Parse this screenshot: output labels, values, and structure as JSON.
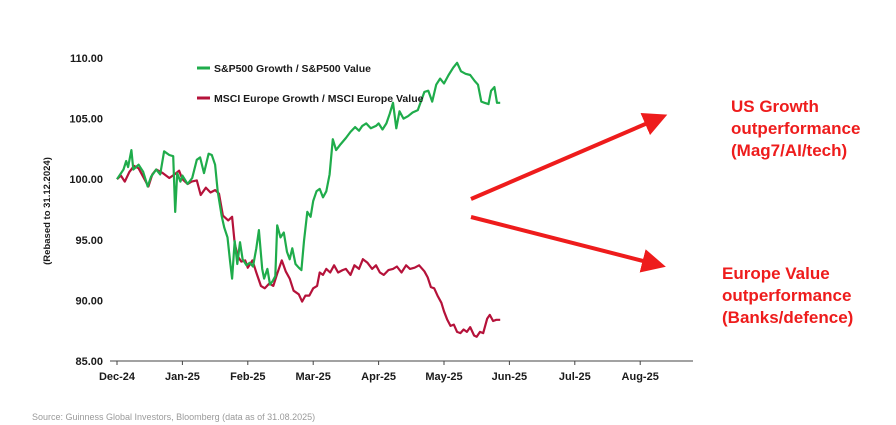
{
  "chart_data": {
    "type": "line",
    "title": "",
    "ylabel": "(Rebased to 31.12.2024)",
    "xlabel": "",
    "ylim": [
      85,
      110
    ],
    "y_ticks": [
      "85.00",
      "90.00",
      "95.00",
      "100.00",
      "105.00",
      "110.00"
    ],
    "x_ticks": [
      "Dec-24",
      "Jan-25",
      "Feb-25",
      "Mar-25",
      "Apr-25",
      "May-25",
      "Jun-25",
      "Jul-25",
      "Aug-25"
    ],
    "grid": false,
    "legend_position": "top-left",
    "series": [
      {
        "name": "S&P500 Growth / S&P500 Value",
        "color": "#1fac4b",
        "points": [
          [
            0.0,
            100.0
          ],
          [
            0.1,
            100.8
          ],
          [
            0.14,
            101.5
          ],
          [
            0.17,
            101.0
          ],
          [
            0.22,
            102.4
          ],
          [
            0.25,
            100.8
          ],
          [
            0.33,
            101.2
          ],
          [
            0.4,
            100.6
          ],
          [
            0.47,
            99.4
          ],
          [
            0.52,
            100.2
          ],
          [
            0.6,
            100.8
          ],
          [
            0.66,
            100.4
          ],
          [
            0.72,
            102.3
          ],
          [
            0.8,
            102.0
          ],
          [
            0.86,
            101.9
          ],
          [
            0.89,
            97.3
          ],
          [
            0.92,
            100.5
          ],
          [
            0.97,
            99.8
          ],
          [
            1.0,
            100.3
          ],
          [
            1.08,
            99.6
          ],
          [
            1.15,
            100.1
          ],
          [
            1.22,
            101.6
          ],
          [
            1.27,
            101.8
          ],
          [
            1.33,
            100.5
          ],
          [
            1.4,
            102.1
          ],
          [
            1.45,
            102.0
          ],
          [
            1.5,
            101.2
          ],
          [
            1.54,
            99.0
          ],
          [
            1.6,
            97.0
          ],
          [
            1.64,
            96.0
          ],
          [
            1.69,
            95.2
          ],
          [
            1.73,
            93.2
          ],
          [
            1.76,
            91.8
          ],
          [
            1.8,
            94.9
          ],
          [
            1.84,
            93.0
          ],
          [
            1.88,
            94.8
          ],
          [
            1.92,
            93.4
          ],
          [
            1.98,
            92.9
          ],
          [
            2.03,
            93.1
          ],
          [
            2.08,
            92.8
          ],
          [
            2.13,
            94.3
          ],
          [
            2.17,
            95.8
          ],
          [
            2.22,
            92.6
          ],
          [
            2.25,
            91.8
          ],
          [
            2.3,
            92.6
          ],
          [
            2.34,
            91.3
          ],
          [
            2.38,
            91.6
          ],
          [
            2.42,
            92.0
          ],
          [
            2.45,
            96.2
          ],
          [
            2.5,
            95.2
          ],
          [
            2.55,
            95.6
          ],
          [
            2.6,
            94.0
          ],
          [
            2.64,
            93.4
          ],
          [
            2.68,
            94.3
          ],
          [
            2.73,
            93.0
          ],
          [
            2.78,
            92.7
          ],
          [
            2.82,
            92.5
          ],
          [
            2.86,
            94.9
          ],
          [
            2.91,
            97.3
          ],
          [
            2.96,
            96.9
          ],
          [
            3.0,
            98.2
          ],
          [
            3.05,
            99.0
          ],
          [
            3.1,
            99.2
          ],
          [
            3.15,
            98.5
          ],
          [
            3.2,
            99.0
          ],
          [
            3.25,
            100.4
          ],
          [
            3.3,
            103.3
          ],
          [
            3.35,
            102.4
          ],
          [
            3.42,
            102.9
          ],
          [
            3.5,
            103.4
          ],
          [
            3.57,
            103.9
          ],
          [
            3.64,
            104.3
          ],
          [
            3.7,
            104.0
          ],
          [
            3.75,
            104.4
          ],
          [
            3.81,
            104.6
          ],
          [
            3.88,
            104.2
          ],
          [
            3.96,
            104.4
          ],
          [
            4.0,
            104.6
          ],
          [
            4.06,
            104.1
          ],
          [
            4.12,
            104.6
          ],
          [
            4.17,
            105.4
          ],
          [
            4.22,
            106.3
          ],
          [
            4.27,
            104.2
          ],
          [
            4.32,
            105.6
          ],
          [
            4.38,
            105.0
          ],
          [
            4.45,
            105.2
          ],
          [
            4.52,
            105.5
          ],
          [
            4.6,
            105.7
          ],
          [
            4.7,
            107.2
          ],
          [
            4.76,
            107.3
          ],
          [
            4.82,
            106.4
          ],
          [
            4.88,
            107.8
          ],
          [
            4.94,
            108.3
          ],
          [
            5.0,
            107.9
          ],
          [
            5.07,
            108.6
          ],
          [
            5.14,
            109.2
          ],
          [
            5.2,
            109.6
          ],
          [
            5.26,
            108.9
          ],
          [
            5.33,
            108.7
          ],
          [
            5.4,
            108.6
          ],
          [
            5.47,
            108.1
          ],
          [
            5.52,
            107.8
          ],
          [
            5.57,
            106.4
          ],
          [
            5.62,
            106.3
          ],
          [
            5.68,
            106.2
          ],
          [
            5.72,
            107.3
          ],
          [
            5.77,
            107.6
          ],
          [
            5.81,
            106.3
          ],
          [
            5.86,
            106.3
          ]
        ]
      },
      {
        "name": "MSCI Europe Growth / MSCI Europe Value",
        "color": "#b5123a",
        "points": [
          [
            0.0,
            100.0
          ],
          [
            0.06,
            100.3
          ],
          [
            0.12,
            99.8
          ],
          [
            0.19,
            100.6
          ],
          [
            0.26,
            101.1
          ],
          [
            0.33,
            100.9
          ],
          [
            0.4,
            100.2
          ],
          [
            0.48,
            99.4
          ],
          [
            0.54,
            100.4
          ],
          [
            0.6,
            100.8
          ],
          [
            0.7,
            100.5
          ],
          [
            0.8,
            100.1
          ],
          [
            0.88,
            100.4
          ],
          [
            0.95,
            100.7
          ],
          [
            1.0,
            100.0
          ],
          [
            1.08,
            99.6
          ],
          [
            1.14,
            99.8
          ],
          [
            1.22,
            99.9
          ],
          [
            1.28,
            98.7
          ],
          [
            1.36,
            99.3
          ],
          [
            1.43,
            98.9
          ],
          [
            1.5,
            99.1
          ],
          [
            1.56,
            98.8
          ],
          [
            1.62,
            97.0
          ],
          [
            1.7,
            96.6
          ],
          [
            1.76,
            96.9
          ],
          [
            1.8,
            94.7
          ],
          [
            1.85,
            93.6
          ],
          [
            1.9,
            93.2
          ],
          [
            1.96,
            93.3
          ],
          [
            2.0,
            92.7
          ],
          [
            2.07,
            93.3
          ],
          [
            2.13,
            92.3
          ],
          [
            2.2,
            91.2
          ],
          [
            2.26,
            91.0
          ],
          [
            2.33,
            91.4
          ],
          [
            2.39,
            91.2
          ],
          [
            2.45,
            92.2
          ],
          [
            2.52,
            93.3
          ],
          [
            2.58,
            92.4
          ],
          [
            2.64,
            91.8
          ],
          [
            2.7,
            90.8
          ],
          [
            2.78,
            90.5
          ],
          [
            2.83,
            89.9
          ],
          [
            2.88,
            90.4
          ],
          [
            2.94,
            90.4
          ],
          [
            3.0,
            91.0
          ],
          [
            3.06,
            91.2
          ],
          [
            3.1,
            92.3
          ],
          [
            3.15,
            92.1
          ],
          [
            3.2,
            92.6
          ],
          [
            3.26,
            92.3
          ],
          [
            3.32,
            92.9
          ],
          [
            3.38,
            92.3
          ],
          [
            3.45,
            92.5
          ],
          [
            3.5,
            92.6
          ],
          [
            3.57,
            92.1
          ],
          [
            3.63,
            92.9
          ],
          [
            3.7,
            92.6
          ],
          [
            3.76,
            93.4
          ],
          [
            3.83,
            93.1
          ],
          [
            3.9,
            92.6
          ],
          [
            3.96,
            92.9
          ],
          [
            4.02,
            92.3
          ],
          [
            4.08,
            92.1
          ],
          [
            4.15,
            92.5
          ],
          [
            4.22,
            92.6
          ],
          [
            4.28,
            92.8
          ],
          [
            4.35,
            92.3
          ],
          [
            4.42,
            92.9
          ],
          [
            4.48,
            92.6
          ],
          [
            4.55,
            92.7
          ],
          [
            4.62,
            92.9
          ],
          [
            4.7,
            92.4
          ],
          [
            4.75,
            91.9
          ],
          [
            4.8,
            91.1
          ],
          [
            4.85,
            91.0
          ],
          [
            4.9,
            90.4
          ],
          [
            4.96,
            89.8
          ],
          [
            5.0,
            89.1
          ],
          [
            5.05,
            88.4
          ],
          [
            5.1,
            87.9
          ],
          [
            5.15,
            88.0
          ],
          [
            5.2,
            87.4
          ],
          [
            5.25,
            87.3
          ],
          [
            5.3,
            87.6
          ],
          [
            5.35,
            87.4
          ],
          [
            5.4,
            87.8
          ],
          [
            5.46,
            87.1
          ],
          [
            5.5,
            87.0
          ],
          [
            5.55,
            87.4
          ],
          [
            5.6,
            87.3
          ],
          [
            5.66,
            88.5
          ],
          [
            5.7,
            88.8
          ],
          [
            5.75,
            88.3
          ],
          [
            5.8,
            88.4
          ],
          [
            5.86,
            88.4
          ]
        ]
      }
    ],
    "annotations": [
      {
        "lines": [
          "US Growth",
          "outperformance",
          "(Mag7/AI/tech)"
        ],
        "color": "#ee1c1c"
      },
      {
        "lines": [
          "Europe Value",
          "outperformance",
          "(Banks/defence)"
        ],
        "color": "#ee1c1c"
      }
    ]
  },
  "source": "Source: Guinness Global Investors, Bloomberg (data as of 31.08.2025)"
}
